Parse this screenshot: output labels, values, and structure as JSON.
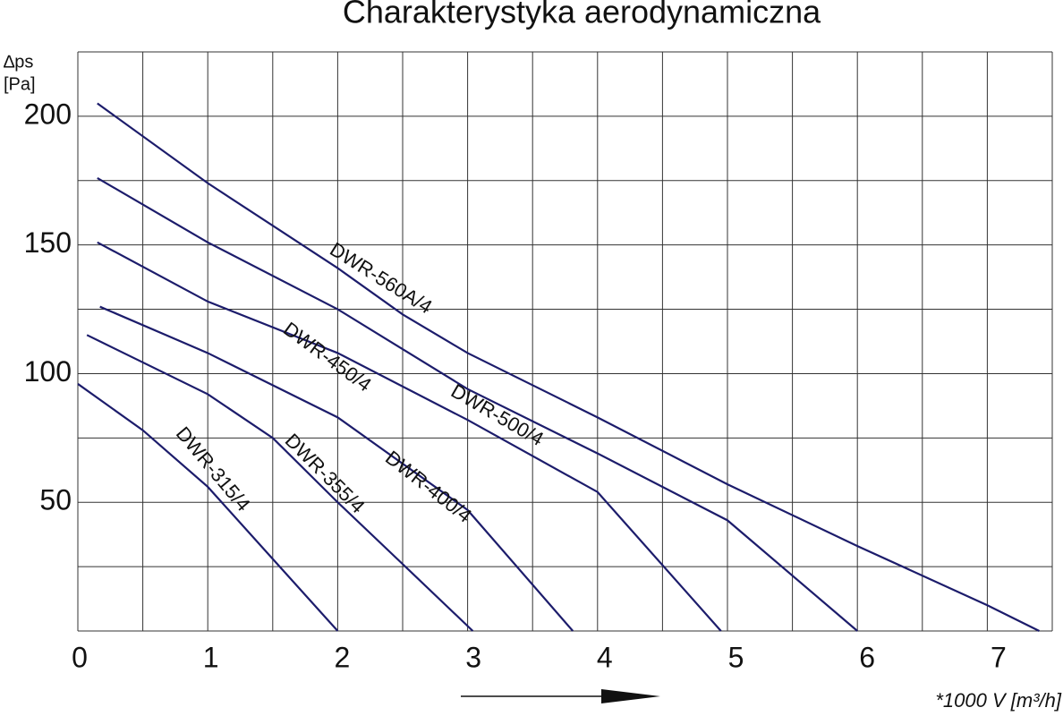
{
  "chart_data": {
    "type": "line",
    "title": "Charakterystyka aerodynamiczna",
    "y_label": [
      "∆ps",
      "[Pa]"
    ],
    "x_label": "*1000 V [m³/h]",
    "xlim": [
      0,
      7.5
    ],
    "ylim": [
      0,
      225
    ],
    "xticks": [
      0,
      1,
      2,
      3,
      4,
      5,
      6,
      7
    ],
    "yticks": [
      50,
      100,
      150,
      200
    ],
    "xgrid": [
      0,
      0.5,
      1,
      1.5,
      2,
      2.5,
      3,
      3.5,
      4,
      4.5,
      5,
      5.5,
      6,
      6.5,
      7,
      7.5
    ],
    "ygrid": [
      0,
      25,
      50,
      75,
      100,
      125,
      150,
      175,
      200,
      225
    ],
    "grid": true,
    "series": [
      {
        "name": "DWR-560A/4",
        "color": "#1c1c6b",
        "x": [
          0.15,
          1,
          2,
          2.5,
          3,
          4,
          5,
          6,
          7,
          7.4
        ],
        "values": [
          205,
          174,
          141,
          123,
          108,
          83,
          57,
          33,
          10,
          0
        ]
      },
      {
        "name": "DWR-500/4",
        "color": "#1c1c6b",
        "x": [
          0.15,
          1,
          2,
          3,
          4,
          5,
          6
        ],
        "values": [
          176,
          151,
          125,
          94,
          69,
          43,
          0
        ]
      },
      {
        "name": "DWR-450/4",
        "color": "#1c1c6b",
        "x": [
          0.15,
          1,
          2,
          3,
          4,
          4.95
        ],
        "values": [
          151,
          128,
          108,
          82,
          54,
          0
        ]
      },
      {
        "name": "DWR-400/4",
        "color": "#1c1c6b",
        "x": [
          0.17,
          1,
          2,
          3,
          3.81
        ],
        "values": [
          126,
          108,
          83,
          47,
          0
        ]
      },
      {
        "name": "DWR-355/4",
        "color": "#1c1c6b",
        "x": [
          0.07,
          1,
          1.5,
          2,
          2.5,
          3.04
        ],
        "values": [
          115,
          92,
          75,
          50,
          26,
          0
        ]
      },
      {
        "name": "DWR-315/4",
        "color": "#1c1c6b",
        "x": [
          0,
          0.5,
          1,
          1.5,
          2
        ],
        "values": [
          96,
          78,
          56,
          28,
          0
        ]
      }
    ]
  }
}
